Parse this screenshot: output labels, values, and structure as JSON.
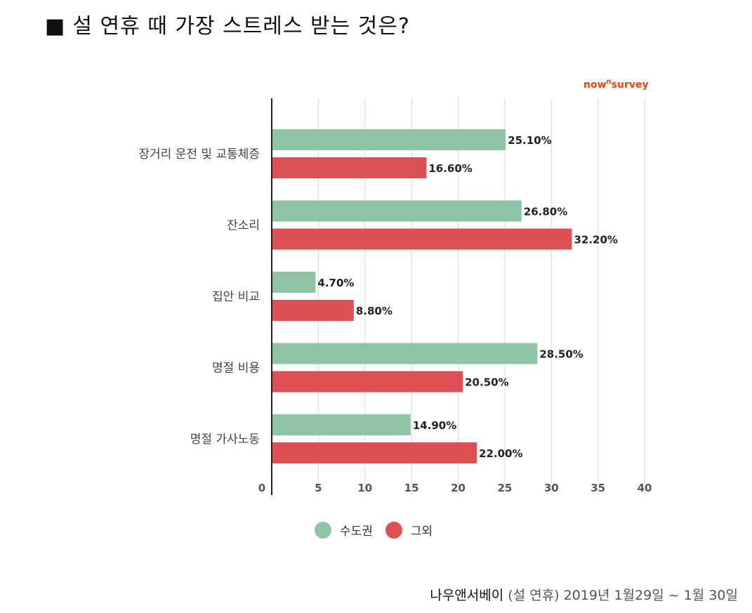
{
  "title": "설 연휴 때 가장 스트레스 받는 것은?",
  "title_marker": "■",
  "brand": {
    "main": "now",
    "sup": "n",
    "rest": "survey",
    "color": "#e8420f"
  },
  "chart_data": {
    "type": "bar",
    "orientation": "horizontal",
    "categories": [
      "장거리 운전 및 교통체증",
      "잔소리",
      "집안 비교",
      "명절 비용",
      "명절 가사노동"
    ],
    "series": [
      {
        "name": "수도권",
        "values": [
          25.1,
          26.8,
          4.7,
          28.5,
          14.9
        ],
        "color": "#8fc4a7"
      },
      {
        "name": "그외",
        "values": [
          16.6,
          32.2,
          8.8,
          20.5,
          22.0
        ],
        "color": "#dd5154"
      }
    ],
    "value_labels": [
      [
        "25.10%",
        "26.80%",
        "4.70%",
        "28.50%",
        "14.90%"
      ],
      [
        "16.60%",
        "32.20%",
        "8.80%",
        "20.50%",
        "22.00%"
      ]
    ],
    "xlim": [
      0,
      40
    ],
    "xticks": [
      "0",
      "5",
      "10",
      "15",
      "20",
      "25",
      "30",
      "35",
      "40"
    ],
    "grid": true,
    "legend_position": "bottom-center"
  },
  "source": {
    "main": "나우앤서베이",
    "rest": "(설 연휴) 2019년 1월29일 ~ 1월 30일"
  }
}
